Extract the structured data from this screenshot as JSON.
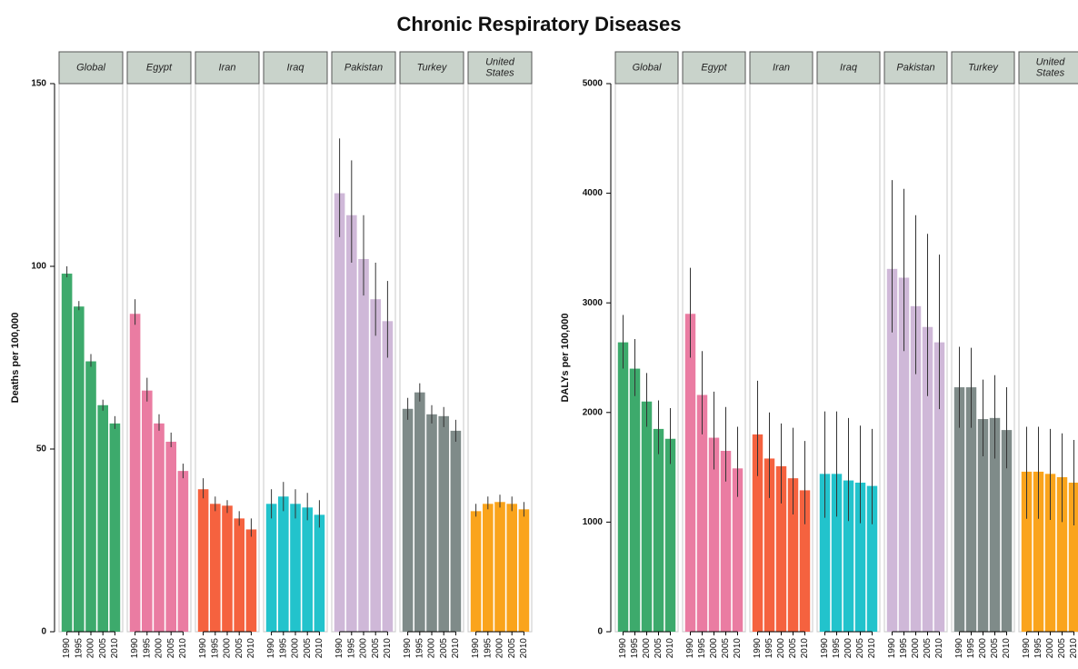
{
  "title": "Chronic Respiratory Diseases",
  "chart_data": [
    {
      "type": "bar",
      "ylabel": "Deaths per 100,000",
      "ylim": [
        0,
        150
      ],
      "yticks": [
        0,
        50,
        100,
        150
      ],
      "categories": [
        "1990",
        "1995",
        "2000",
        "2005",
        "2010"
      ],
      "facets": [
        {
          "name": "Global",
          "color": "#3daa6c",
          "values": [
            98,
            89,
            74,
            62,
            57
          ],
          "lower": [
            97,
            88,
            72.5,
            60.5,
            55.5
          ],
          "upper": [
            100,
            90.5,
            76,
            63.5,
            59
          ]
        },
        {
          "name": "Egypt",
          "color": "#ea7ca2",
          "values": [
            87,
            66,
            57,
            52,
            44
          ],
          "lower": [
            84,
            63,
            55,
            50.5,
            42
          ],
          "upper": [
            91,
            69.5,
            59.5,
            54.5,
            46
          ]
        },
        {
          "name": "Iran",
          "color": "#f5623f",
          "values": [
            39,
            35,
            34.5,
            31,
            28
          ],
          "lower": [
            36.5,
            33,
            32.5,
            29,
            26
          ],
          "upper": [
            42,
            37,
            36,
            33,
            31
          ]
        },
        {
          "name": "Iraq",
          "color": "#22c3cc",
          "values": [
            35,
            37,
            35,
            34,
            32
          ],
          "lower": [
            31,
            33,
            31,
            30.5,
            28.5
          ],
          "upper": [
            39,
            41,
            39,
            38,
            36
          ]
        },
        {
          "name": "Pakistan",
          "color": "#cfb8d8",
          "values": [
            120,
            114,
            102,
            91,
            85
          ],
          "lower": [
            108,
            101,
            92,
            81,
            75
          ],
          "upper": [
            135,
            129,
            114,
            101,
            96
          ]
        },
        {
          "name": "Turkey",
          "color": "#7f8b89",
          "values": [
            61,
            65.5,
            59.5,
            59,
            55
          ],
          "lower": [
            58,
            63,
            57,
            56,
            52
          ],
          "upper": [
            64,
            68,
            62,
            61.5,
            58
          ]
        },
        {
          "name": "United States",
          "color": "#faa41c",
          "values": [
            33,
            35,
            35.5,
            35,
            33.5
          ],
          "lower": [
            31.5,
            33.5,
            34,
            33,
            31.5
          ],
          "upper": [
            35,
            37,
            37.5,
            37,
            35.5
          ]
        }
      ]
    },
    {
      "type": "bar",
      "ylabel": "DALYs per 100,000",
      "ylim": [
        0,
        5000
      ],
      "yticks": [
        0,
        1000,
        2000,
        3000,
        4000,
        5000
      ],
      "categories": [
        "1990",
        "1995",
        "2000",
        "2005",
        "2010"
      ],
      "facets": [
        {
          "name": "Global",
          "color": "#3daa6c",
          "values": [
            2640,
            2400,
            2100,
            1850,
            1760
          ],
          "lower": [
            2400,
            2150,
            1870,
            1620,
            1530
          ],
          "upper": [
            2890,
            2670,
            2360,
            2110,
            2040
          ]
        },
        {
          "name": "Egypt",
          "color": "#ea7ca2",
          "values": [
            2900,
            2160,
            1770,
            1650,
            1490
          ],
          "lower": [
            2500,
            1800,
            1480,
            1370,
            1230
          ],
          "upper": [
            3320,
            2560,
            2190,
            2050,
            1870
          ]
        },
        {
          "name": "Iran",
          "color": "#f5623f",
          "values": [
            1800,
            1580,
            1510,
            1400,
            1290
          ],
          "lower": [
            1420,
            1220,
            1170,
            1070,
            980
          ],
          "upper": [
            2290,
            2000,
            1900,
            1860,
            1740
          ]
        },
        {
          "name": "Iraq",
          "color": "#22c3cc",
          "values": [
            1440,
            1440,
            1380,
            1360,
            1330
          ],
          "lower": [
            1040,
            1050,
            1010,
            990,
            980
          ],
          "upper": [
            2010,
            2010,
            1950,
            1880,
            1850
          ]
        },
        {
          "name": "Pakistan",
          "color": "#cfb8d8",
          "values": [
            3310,
            3230,
            2970,
            2780,
            2640
          ],
          "lower": [
            2730,
            2560,
            2350,
            2150,
            2030
          ],
          "upper": [
            4120,
            4040,
            3800,
            3630,
            3440
          ]
        },
        {
          "name": "Turkey",
          "color": "#7f8b89",
          "values": [
            2230,
            2230,
            1940,
            1950,
            1840
          ],
          "lower": [
            1860,
            1860,
            1600,
            1580,
            1490
          ],
          "upper": [
            2600,
            2590,
            2300,
            2340,
            2230
          ]
        },
        {
          "name": "United States",
          "color": "#faa41c",
          "values": [
            1460,
            1460,
            1440,
            1410,
            1360
          ],
          "lower": [
            1030,
            1030,
            1020,
            1000,
            970
          ],
          "upper": [
            1870,
            1870,
            1850,
            1810,
            1750
          ]
        }
      ]
    }
  ]
}
